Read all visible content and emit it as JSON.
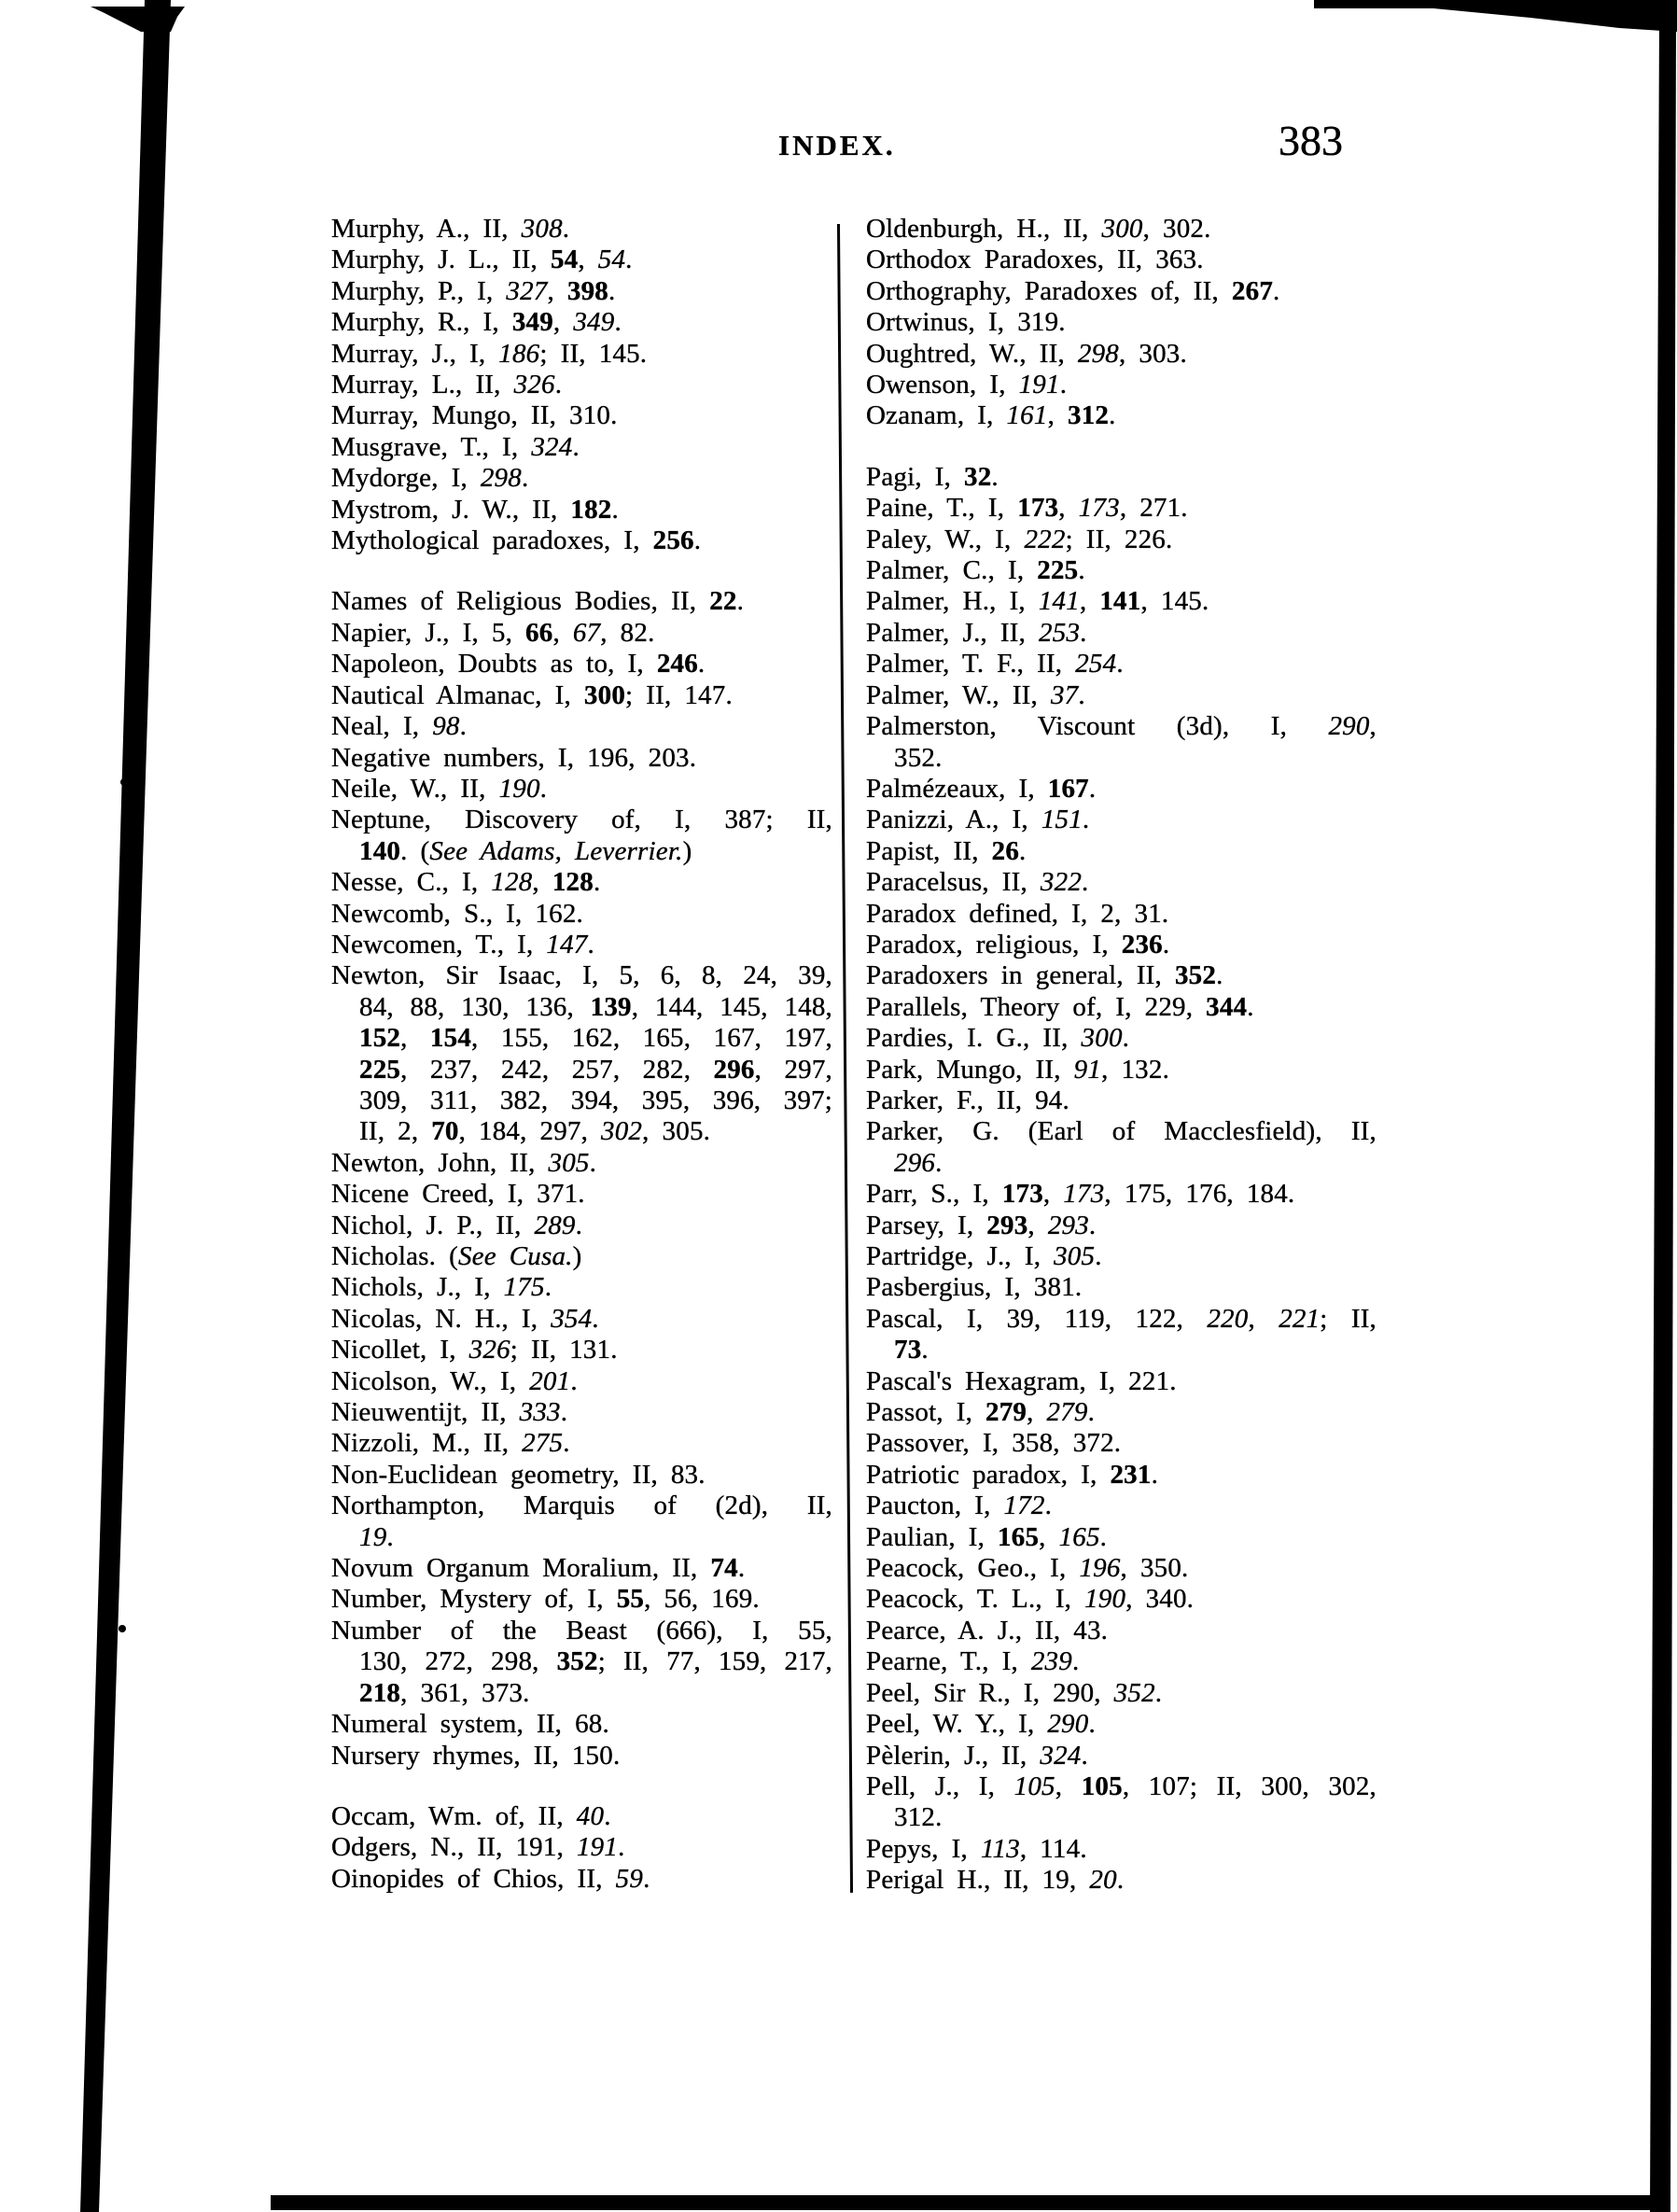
{
  "colors": {
    "ink": "#000000",
    "paper": "#ffffff"
  },
  "header": {
    "title": "INDEX.",
    "page_number": "383"
  },
  "left_column": {
    "groups": [
      {
        "lines": [
          "Murphy, A., II, *308*.",
          "Murphy, J. L., II, **54**, *54*.",
          "Murphy, P., I, *327*, **398**.",
          "Murphy, R., I, **349**, *349*.",
          "Murray, J., I, *186*; II, 145.",
          "Murray, L., II, *326*.",
          "Murray, Mungo, II, 310.",
          "Musgrave, T., I, *324*.",
          "Mydorge, I, *298*.",
          "Mystrom, J. W., II, **182**.",
          "Mythological paradoxes, I, **256**."
        ]
      },
      {
        "lines": [
          "Names of Religious Bodies, II, **22**.",
          "Napier, J., I, 5, **66**, *67*, 82.",
          "Napoleon, Doubts as to, I, **246**.",
          "Nautical Almanac, I, **300**; II, 147.",
          "Neal, I, *98*.",
          "Negative numbers, I, 196, 203.",
          "Neile, W., II, *190*.",
          "Neptune, Discovery of, I, 387; II,",
          {
            "text": "**140**. (*See Adams, Leverrier.*)",
            "cont": true
          },
          "Nesse, C., I, *128*, **128**.",
          "Newcomb, S., I, 162.",
          "Newcomen, T., I, *147*.",
          "Newton, Sir Isaac, I, 5, 6, 8, 24, 39,",
          {
            "text": "84, 88, 130, 136, **139**, 144, 145, 148,",
            "cont": true
          },
          {
            "text": "**152**, **154**, 155, 162, 165, 167, 197,",
            "cont": true
          },
          {
            "text": "**225**, 237, 242, 257, 282, **296**, 297,",
            "cont": true
          },
          {
            "text": "309, 311, 382, 394, 395, 396, 397;",
            "cont": true
          },
          {
            "text": "II, 2, **70**, 184, 297, *302*, 305.",
            "cont": true
          },
          "Newton, John, II, *305*.",
          "Nicene Creed, I, 371.",
          "Nichol, J. P., II, *289*.",
          "Nicholas. (*See Cusa.*)",
          "Nichols, J., I, *175*.",
          "Nicolas, N. H., I, *354*.",
          "Nicollet, I, *326*; II, 131.",
          "Nicolson, W., I, *201*.",
          "Nieuwentijt, II, *333*.",
          "Nizzoli, M., II, *275*.",
          "Non-Euclidean geometry, II, 83.",
          "Northampton, Marquis of (2d), II,",
          {
            "text": "*19*.",
            "cont": true
          },
          "Novum Organum Moralium, II, **74**.",
          "Number, Mystery of, I, **55**, 56, 169.",
          "Number of the Beast (666), I, 55,",
          {
            "text": "130, 272, 298, **352**; II, 77, 159, 217,",
            "cont": true
          },
          {
            "text": "**218**, 361, 373.",
            "cont": true
          },
          "Numeral system, II, 68.",
          "Nursery rhymes, II, 150."
        ]
      },
      {
        "lines": [
          "Occam, Wm. of, II, *40*.",
          "Odgers, N., II, 191, *191*.",
          "Oinopides of Chios, II, *59*."
        ]
      }
    ]
  },
  "right_column": {
    "groups": [
      {
        "lines": [
          "Oldenburgh, H., II, *300*, 302.",
          "Orthodox Paradoxes, II, 363.",
          "Orthography, Paradoxes of, II, **267**.",
          "Ortwinus, I, 319.",
          "Oughtred, W., II, *298*, 303.",
          "Owenson, I, *191*.",
          "Ozanam, I, *161*, **312**."
        ]
      },
      {
        "lines": [
          "Pagi, I, **32**.",
          "Paine, T., I, **173**, *173*, 271.",
          "Paley, W., I, *222*; II, 226.",
          "Palmer, C., I, **225**.",
          "Palmer, H., I, *141*, **141**, 145.",
          "Palmer, J., II, *253*.",
          "Palmer, T. F., II, *254*.",
          "Palmer, W., II, *37*.",
          "Palmerston, Viscount (3d), I, *290*,",
          {
            "text": "352.",
            "cont": true
          },
          "Palmézeaux, I, **167**.",
          "Panizzi, A., I, *151*.",
          "Papist, II, **26**.",
          "Paracelsus, II, *322*.",
          "Paradox defined, I, 2, 31.",
          "Paradox, religious, I, **236**.",
          "Paradoxers in general, II, **352**.",
          "Parallels, Theory of, I, 229, **344**.",
          "Pardies, I. G., II, *300*.",
          "Park, Mungo, II, *91*, 132.",
          "Parker, F., II, 94.",
          "Parker, G. (Earl of Macclesfield), II,",
          {
            "text": "*296*.",
            "cont": true
          },
          "Parr, S., I, **173**, *173*, 175, 176, 184.",
          "Parsey, I, **293**, *293*.",
          "Partridge, J., I, *305*.",
          "Pasbergius, I, 381.",
          "Pascal, I, 39, 119, 122, *220*, *221*; II,",
          {
            "text": "**73**.",
            "cont": true
          },
          "Pascal's Hexagram, I, 221.",
          "Passot, I, **279**, *279*.",
          "Passover, I, 358, 372.",
          "Patriotic paradox, I, **231**.",
          "Paucton, I, *172*.",
          "Paulian, I, **165**, *165*.",
          "Peacock, Geo., I, *196*, 350.",
          "Peacock, T. L., I, *190*, 340.",
          "Pearce, A. J., II, 43.",
          "Pearne, T., I, *239*.",
          "Peel, Sir R., I, 290, *352*.",
          "Peel, W. Y., I, *290*.",
          "Pèlerin, J., II, *324*.",
          "Pell, J., I, *105*, **105**, 107; II, 300, 302,",
          {
            "text": "312.",
            "cont": true
          },
          "Pepys, I, *113*, 114.",
          "Perigal H., II, 19, *20*."
        ]
      }
    ]
  }
}
